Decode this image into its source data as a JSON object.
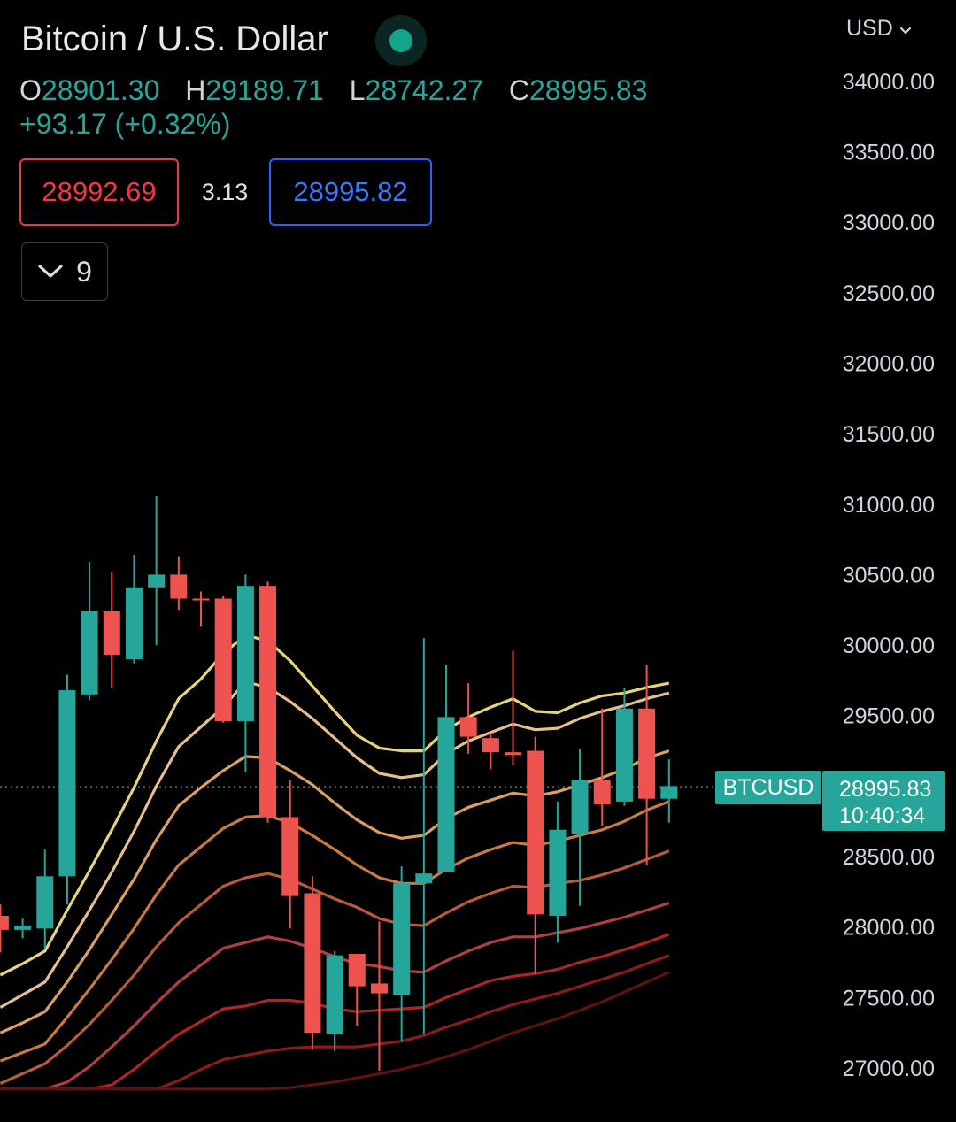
{
  "header": {
    "title": "Bitcoin / U.S. Dollar",
    "ohlc": {
      "o_label": "O",
      "o_value": "28901.30",
      "h_label": "H",
      "h_value": "29189.71",
      "l_label": "L",
      "l_value": "28742.27",
      "c_label": "C",
      "c_value": "28995.83"
    },
    "change": "+93.17 (+0.32%)",
    "live_status_icon": "live-dot-icon"
  },
  "trade": {
    "bid": "28992.69",
    "spread": "3.13",
    "ask": "28995.82"
  },
  "indicators": {
    "count": "9",
    "toggle_icon": "chevron-down-icon"
  },
  "price_axis": {
    "currency": "USD",
    "labels": [
      "34000.00",
      "33500.00",
      "33000.00",
      "32500.00",
      "32000.00",
      "31500.00",
      "31000.00",
      "30500.00",
      "30000.00",
      "29500.00",
      "29000.00",
      "28500.00",
      "28000.00",
      "27500.00",
      "27000.00"
    ]
  },
  "last_price": {
    "symbol": "BTCUSD",
    "price": "28995.83",
    "countdown": "10:40:34"
  },
  "colors": {
    "up": "#26a69a",
    "down": "#ef5350",
    "bid": "#f23645",
    "ask": "#2962ff",
    "background": "#000000",
    "ribbon": [
      "#e7d37a",
      "#e4c08d",
      "#d9a060",
      "#c97a3e",
      "#b85a3c",
      "#b04040",
      "#b02424",
      "#8e1a1a",
      "#5e1212"
    ]
  },
  "chart_data": {
    "type": "candlestick",
    "symbol": "BTCUSD",
    "ylim": [
      26850,
      34200
    ],
    "yticks": [
      34000,
      33500,
      33000,
      32500,
      32000,
      31500,
      31000,
      30500,
      30000,
      29500,
      29000,
      28500,
      28000,
      27500,
      27000
    ],
    "grid": false,
    "candles": [
      {
        "o": 28080,
        "h": 28160,
        "l": 27820,
        "c": 27980
      },
      {
        "o": 27980,
        "h": 28060,
        "l": 27920,
        "c": 28010
      },
      {
        "o": 27990,
        "h": 28550,
        "l": 27850,
        "c": 28360
      },
      {
        "o": 28360,
        "h": 29790,
        "l": 28160,
        "c": 29680
      },
      {
        "o": 29650,
        "h": 30590,
        "l": 29610,
        "c": 30240
      },
      {
        "o": 30240,
        "h": 30520,
        "l": 29700,
        "c": 29930
      },
      {
        "o": 29900,
        "h": 30640,
        "l": 29870,
        "c": 30410
      },
      {
        "o": 30410,
        "h": 31060,
        "l": 30000,
        "c": 30500
      },
      {
        "o": 30500,
        "h": 30630,
        "l": 30250,
        "c": 30330
      },
      {
        "o": 30330,
        "h": 30380,
        "l": 30130,
        "c": 30320
      },
      {
        "o": 30330,
        "h": 30350,
        "l": 29450,
        "c": 29460
      },
      {
        "o": 29460,
        "h": 30500,
        "l": 29100,
        "c": 30420
      },
      {
        "o": 30420,
        "h": 30450,
        "l": 28740,
        "c": 28780
      },
      {
        "o": 28780,
        "h": 29040,
        "l": 27990,
        "c": 28220
      },
      {
        "o": 28240,
        "h": 28360,
        "l": 27130,
        "c": 27250
      },
      {
        "o": 27240,
        "h": 27830,
        "l": 27120,
        "c": 27800
      },
      {
        "o": 27810,
        "h": 27810,
        "l": 27300,
        "c": 27580
      },
      {
        "o": 27600,
        "h": 28040,
        "l": 26980,
        "c": 27530
      },
      {
        "o": 27520,
        "h": 28430,
        "l": 27190,
        "c": 28310
      },
      {
        "o": 28310,
        "h": 30050,
        "l": 27240,
        "c": 28380
      },
      {
        "o": 28390,
        "h": 29860,
        "l": 28420,
        "c": 29490
      },
      {
        "o": 29490,
        "h": 29730,
        "l": 29230,
        "c": 29350
      },
      {
        "o": 29340,
        "h": 29380,
        "l": 29120,
        "c": 29240
      },
      {
        "o": 29240,
        "h": 29960,
        "l": 29150,
        "c": 29220
      },
      {
        "o": 29250,
        "h": 29350,
        "l": 27670,
        "c": 28090
      },
      {
        "o": 28080,
        "h": 28890,
        "l": 27890,
        "c": 28690
      },
      {
        "o": 28660,
        "h": 29260,
        "l": 28150,
        "c": 29040
      },
      {
        "o": 29040,
        "h": 29550,
        "l": 28720,
        "c": 28870
      },
      {
        "o": 28890,
        "h": 29700,
        "l": 28860,
        "c": 29550
      },
      {
        "o": 29550,
        "h": 29860,
        "l": 28440,
        "c": 28910
      },
      {
        "o": 28910,
        "h": 29190,
        "l": 28740,
        "c": 29000
      }
    ],
    "ribbon": [
      {
        "name": "",
        "values": [
          27660,
          27740,
          27830,
          28120,
          28400,
          28690,
          28990,
          29320,
          29620,
          29760,
          29940,
          30070,
          30030,
          29890,
          29710,
          29530,
          29360,
          29270,
          29250,
          29250,
          29400,
          29490,
          29560,
          29620,
          29530,
          29520,
          29590,
          29640,
          29660,
          29700,
          29730
        ]
      },
      {
        "name": "",
        "values": [
          27430,
          27520,
          27610,
          27860,
          28120,
          28390,
          28680,
          29000,
          29280,
          29420,
          29560,
          29740,
          29700,
          29600,
          29480,
          29340,
          29200,
          29090,
          29060,
          29080,
          29230,
          29320,
          29380,
          29440,
          29400,
          29410,
          29480,
          29530,
          29570,
          29620,
          29660
        ]
      },
      {
        "name": "",
        "values": [
          27250,
          27320,
          27400,
          27610,
          27840,
          28090,
          28340,
          28620,
          28860,
          28990,
          29110,
          29210,
          29200,
          29110,
          29010,
          28880,
          28760,
          28670,
          28630,
          28650,
          28770,
          28850,
          28900,
          28950,
          28930,
          28960,
          29010,
          29060,
          29120,
          29200,
          29250
        ]
      },
      {
        "name": "",
        "values": [
          27050,
          27110,
          27170,
          27360,
          27560,
          27770,
          27990,
          28230,
          28440,
          28570,
          28700,
          28780,
          28790,
          28740,
          28650,
          28550,
          28440,
          28350,
          28310,
          28310,
          28410,
          28490,
          28550,
          28600,
          28580,
          28610,
          28650,
          28690,
          28750,
          28830,
          28890
        ]
      },
      {
        "name": "",
        "values": [
          26890,
          26960,
          27030,
          27160,
          27310,
          27480,
          27660,
          27860,
          28030,
          28160,
          28290,
          28350,
          28380,
          28340,
          28270,
          28200,
          28140,
          28060,
          28020,
          28010,
          28100,
          28180,
          28240,
          28290,
          28280,
          28310,
          28330,
          28370,
          28420,
          28480,
          28540
        ]
      },
      {
        "name": "",
        "values": [
          26850,
          26850,
          26850,
          26900,
          27010,
          27150,
          27300,
          27460,
          27610,
          27730,
          27850,
          27890,
          27930,
          27900,
          27850,
          27790,
          27740,
          27720,
          27690,
          27680,
          27760,
          27830,
          27890,
          27930,
          27930,
          27960,
          27990,
          28030,
          28070,
          28120,
          28170
        ]
      },
      {
        "name": "",
        "values": [
          26850,
          26850,
          26850,
          26850,
          26850,
          26880,
          26990,
          27120,
          27240,
          27330,
          27420,
          27440,
          27480,
          27480,
          27460,
          27420,
          27400,
          27410,
          27420,
          27430,
          27500,
          27560,
          27620,
          27650,
          27670,
          27700,
          27750,
          27790,
          27840,
          27890,
          27950
        ]
      },
      {
        "name": "",
        "values": [
          26850,
          26850,
          26850,
          26850,
          26850,
          26850,
          26850,
          26850,
          26910,
          26990,
          27060,
          27090,
          27120,
          27140,
          27150,
          27150,
          27150,
          27170,
          27190,
          27230,
          27290,
          27340,
          27400,
          27450,
          27490,
          27530,
          27580,
          27630,
          27680,
          27740,
          27800
        ]
      },
      {
        "name": "",
        "values": [
          26850,
          26850,
          26850,
          26850,
          26850,
          26850,
          26850,
          26850,
          26850,
          26850,
          26850,
          26850,
          26850,
          26860,
          26880,
          26900,
          26930,
          26960,
          26990,
          27030,
          27080,
          27130,
          27190,
          27250,
          27300,
          27350,
          27410,
          27470,
          27540,
          27610,
          27680
        ]
      }
    ],
    "last_price": 28995.83
  }
}
